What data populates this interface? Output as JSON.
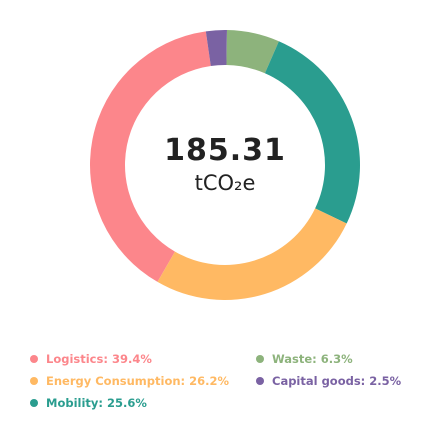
{
  "chart_data": {
    "type": "pie",
    "style": "donut",
    "center": {
      "value": "185.31",
      "unit": "tCO₂e"
    },
    "categories": [
      "Logistics",
      "Energy Consumption",
      "Mobility",
      "Waste",
      "Capital goods"
    ],
    "values": [
      39.4,
      26.2,
      25.6,
      6.3,
      2.5
    ],
    "colors": [
      "#fc868b",
      "#ffb963",
      "#2a9d8f",
      "#8db37c",
      "#7a62a3"
    ],
    "legend": {
      "placement": "bottom",
      "items": [
        {
          "label": "Logistics: 39.4%",
          "color": "#fc868b"
        },
        {
          "label": "Energy Consumption: 26.2%",
          "color": "#ffb963"
        },
        {
          "label": "Mobility: 25.6%",
          "color": "#2a9d8f"
        },
        {
          "label": "Waste: 6.3%",
          "color": "#8db37c"
        },
        {
          "label": "Capital goods: 2.5%",
          "color": "#7a62a3"
        }
      ]
    },
    "start_angle_deg": -150
  }
}
